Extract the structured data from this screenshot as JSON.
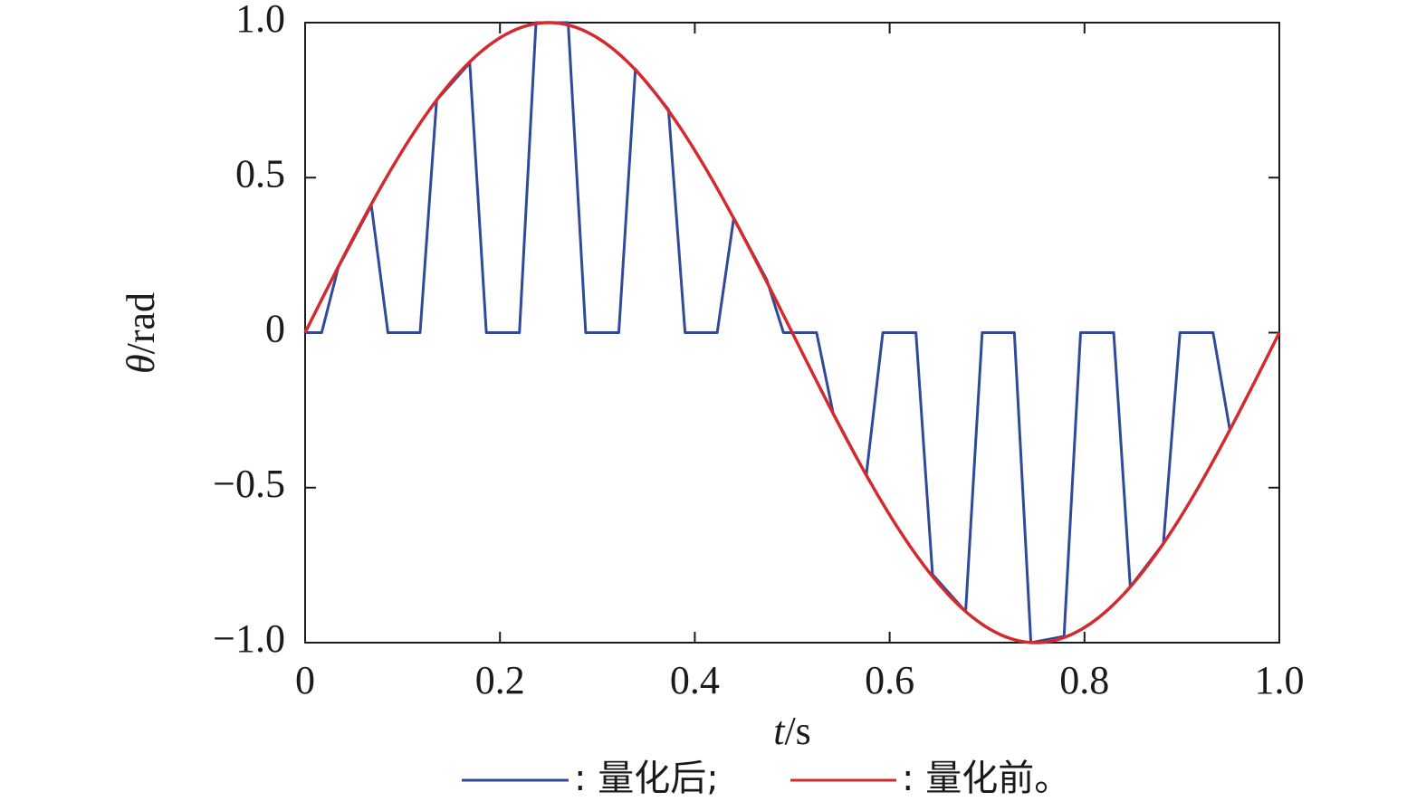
{
  "chart_data": {
    "type": "line",
    "xlabel": "t/s",
    "ylabel": "θ/rad",
    "xlim": [
      0,
      1.0
    ],
    "ylim": [
      -1.0,
      1.0
    ],
    "x_ticks": [
      {
        "value": 0,
        "label": "0"
      },
      {
        "value": 0.2,
        "label": "0.2"
      },
      {
        "value": 0.4,
        "label": "0.4"
      },
      {
        "value": 0.6,
        "label": "0.6"
      },
      {
        "value": 0.8,
        "label": "0.8"
      },
      {
        "value": 1.0,
        "label": "1.0"
      }
    ],
    "y_ticks": [
      {
        "value": 1.0,
        "label": "1.0"
      },
      {
        "value": 0.5,
        "label": "0.5"
      },
      {
        "value": 0,
        "label": "0"
      },
      {
        "value": -0.5,
        "label": "−0.5"
      },
      {
        "value": -1.0,
        "label": "−1.0"
      }
    ],
    "grid": false,
    "legend_placement": "bottom",
    "series": [
      {
        "name": "量化后;",
        "color": "#2f4a9a",
        "x": [
          0,
          0.017,
          0.034,
          0.068,
          0.085,
          0.118,
          0.135,
          0.169,
          0.186,
          0.22,
          0.237,
          0.27,
          0.288,
          0.322,
          0.339,
          0.373,
          0.39,
          0.423,
          0.44,
          0.474,
          0.491,
          0.525,
          0.542,
          0.576,
          0.593,
          0.627,
          0.644,
          0.678,
          0.695,
          0.728,
          0.745,
          0.779,
          0.796,
          0.83,
          0.847,
          0.881,
          0.898,
          0.932,
          0.949
        ],
        "y": [
          0,
          0,
          0.21,
          0.41,
          0,
          0,
          0.75,
          0.87,
          0,
          0,
          1.0,
          1.0,
          0,
          0,
          0.85,
          0.72,
          0,
          0,
          0.37,
          0.17,
          0,
          0,
          -0.26,
          -0.46,
          0,
          0,
          -0.78,
          -0.9,
          0,
          0,
          -1.0,
          -0.98,
          0,
          0,
          -0.82,
          -0.68,
          0,
          0,
          -0.31
        ]
      },
      {
        "name": "量化前。",
        "color": "#d42a2e",
        "function": "sin(2*pi*t)",
        "x_range": [
          0,
          1.0
        ]
      }
    ]
  }
}
